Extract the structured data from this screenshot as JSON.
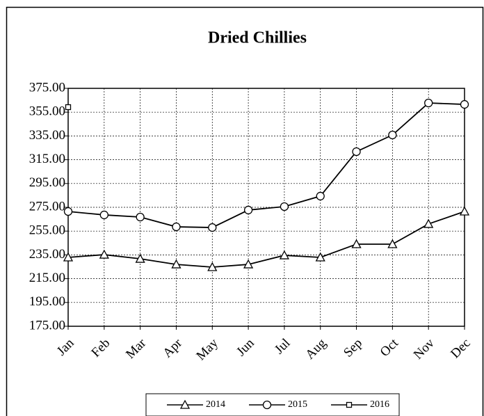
{
  "chart_data": {
    "type": "line",
    "title": "Dried Chillies",
    "categories": [
      "Jan",
      "Feb",
      "Mar",
      "Apr",
      "May",
      "Jun",
      "Jul",
      "Aug",
      "Sep",
      "Oct",
      "Nov",
      "Dec"
    ],
    "series": [
      {
        "name": "2014",
        "color": "#000000",
        "marker": "triangle",
        "values": [
          232.9,
          235.2,
          231.7,
          227.0,
          224.7,
          227.0,
          234.6,
          232.9,
          244.0,
          244.0,
          261.0,
          271.5
        ]
      },
      {
        "name": "2015",
        "color": "#000000",
        "marker": "circle",
        "values": [
          271.5,
          268.6,
          266.8,
          258.6,
          258.0,
          272.7,
          275.6,
          284.4,
          321.8,
          335.8,
          362.7,
          361.5
        ]
      },
      {
        "name": "2016",
        "color": "#000000",
        "marker": "square",
        "values": [
          359.2,
          null,
          null,
          null,
          null,
          null,
          null,
          null,
          null,
          null,
          null,
          null
        ]
      }
    ],
    "ylim": [
      175,
      375
    ],
    "yticks": [
      {
        "value": 175,
        "label": "175.00"
      },
      {
        "value": 195,
        "label": "195.00"
      },
      {
        "value": 215,
        "label": "215.00"
      },
      {
        "value": 235,
        "label": "235.00"
      },
      {
        "value": 255,
        "label": "255.00"
      },
      {
        "value": 275,
        "label": "275.00"
      },
      {
        "value": 295,
        "label": "295.00"
      },
      {
        "value": 315,
        "label": "315.00"
      },
      {
        "value": 335,
        "label": "335.00"
      },
      {
        "value": 355,
        "label": "355.00"
      },
      {
        "value": 375,
        "label": "375.00"
      }
    ],
    "grid": true,
    "legend": "bottom"
  }
}
